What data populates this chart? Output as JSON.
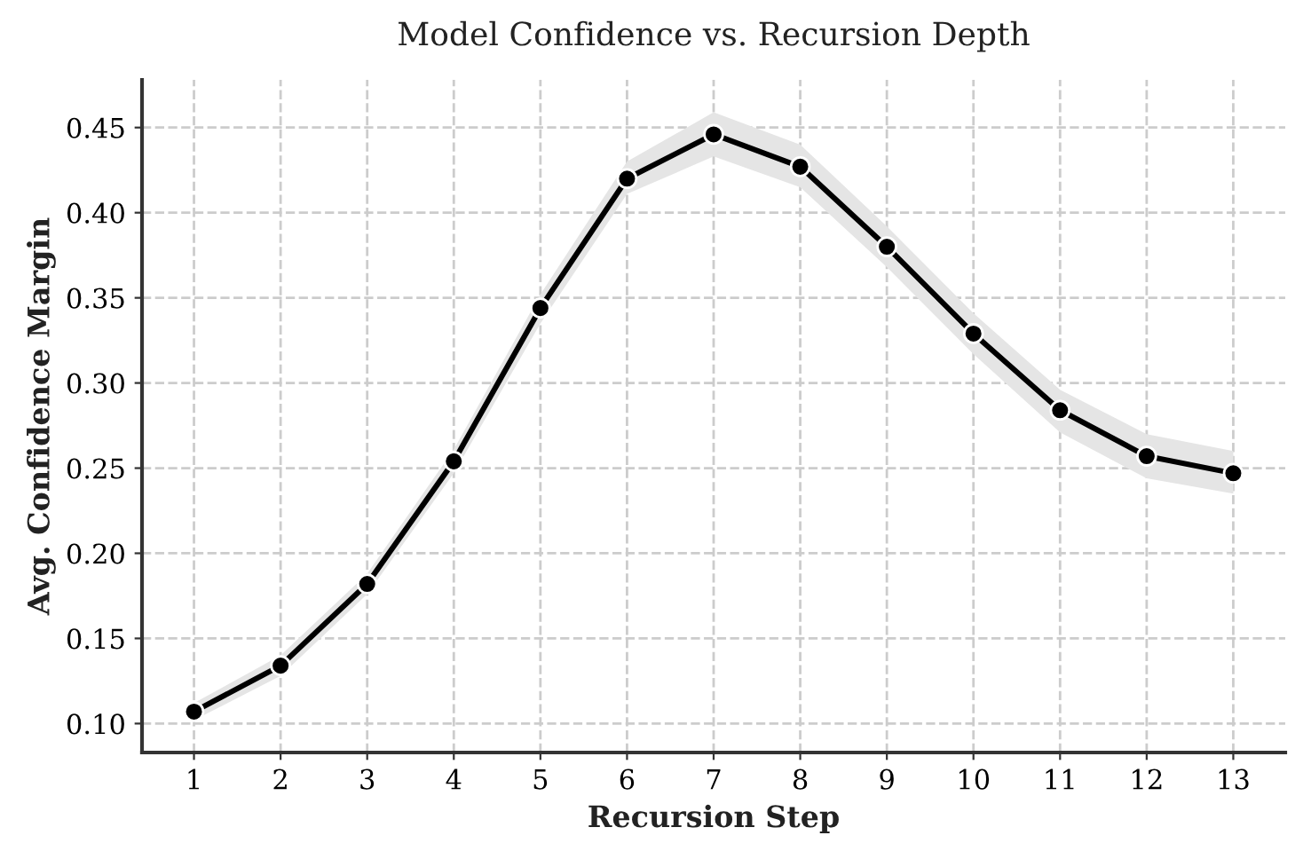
{
  "chart_data": {
    "type": "line",
    "title": "Model Confidence vs. Recursion Depth",
    "xlabel": "Recursion Step",
    "ylabel": "Avg. Confidence Margin",
    "x": [
      1,
      2,
      3,
      4,
      5,
      6,
      7,
      8,
      9,
      10,
      11,
      12,
      13
    ],
    "series": [
      {
        "color": "#000000",
        "values": [
          0.107,
          0.134,
          0.182,
          0.254,
          0.344,
          0.42,
          0.446,
          0.427,
          0.38,
          0.329,
          0.284,
          0.257,
          0.247
        ],
        "lower": [
          0.102,
          0.128,
          0.176,
          0.247,
          0.335,
          0.411,
          0.433,
          0.415,
          0.368,
          0.317,
          0.271,
          0.244,
          0.235
        ],
        "upper": [
          0.112,
          0.14,
          0.188,
          0.261,
          0.352,
          0.43,
          0.459,
          0.44,
          0.392,
          0.341,
          0.296,
          0.27,
          0.26
        ]
      }
    ],
    "xlim": [
      0.4,
      13.6
    ],
    "xticks": [
      1,
      2,
      3,
      4,
      5,
      6,
      7,
      8,
      9,
      10,
      11,
      12,
      13
    ],
    "ylim": [
      0.083,
      0.478
    ],
    "yticks": [
      {
        "value": 0.1,
        "label": "0.10"
      },
      {
        "value": 0.15,
        "label": "0.15"
      },
      {
        "value": 0.2,
        "label": "0.20"
      },
      {
        "value": 0.25,
        "label": "0.25"
      },
      {
        "value": 0.3,
        "label": "0.30"
      },
      {
        "value": 0.35,
        "label": "0.35"
      },
      {
        "value": 0.4,
        "label": "0.40"
      },
      {
        "value": 0.45,
        "label": "0.45"
      }
    ],
    "grid": true,
    "marker": "circle",
    "line_style": "solid"
  }
}
